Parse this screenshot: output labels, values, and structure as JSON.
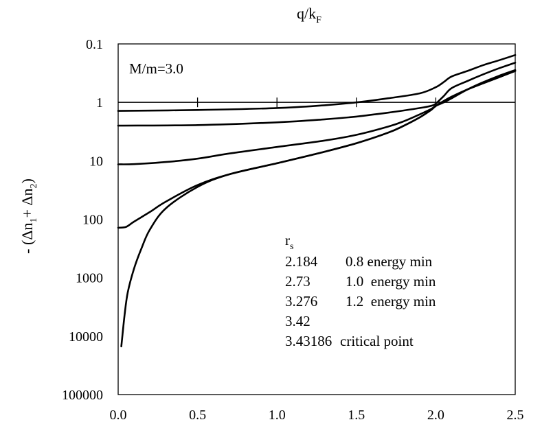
{
  "chart_data": {
    "type": "line",
    "title": "",
    "annotation": "M/m=3.0",
    "xlabel": "q/k",
    "xlabel_sub": "F",
    "ylabel": "- (Δn",
    "ylabel_sub1": "1",
    "ylabel_mid": "+ Δn",
    "ylabel_sub2": "2",
    "ylabel_end": ")",
    "xlim": [
      0.0,
      2.5
    ],
    "ylim_log10": [
      -1,
      5
    ],
    "y_inverted": true,
    "y_scale": "log",
    "x_ticks": [
      "0.0",
      "0.5",
      "1.0",
      "1.5",
      "2.0",
      "2.5"
    ],
    "y_ticks": [
      "0.1",
      "1",
      "10",
      "100",
      "1000",
      "10000",
      "100000"
    ],
    "reference_line_y": 1,
    "reference_ticks_x": [
      0.5,
      1.0,
      1.5,
      2.0
    ],
    "legend_header_r": "r",
    "legend_header_sub": "s",
    "legend": [
      {
        "rs": "2.184",
        "desc": "0.8 energy min"
      },
      {
        "rs": "2.73",
        "desc": "1.0  energy min"
      },
      {
        "rs": "3.276",
        "desc": "1.2  energy min"
      },
      {
        "rs": "3.42",
        "desc": ""
      },
      {
        "rs": "3.43186",
        "desc": "critical point"
      }
    ],
    "series": [
      {
        "name": "2.184",
        "x": [
          0.0,
          0.5,
          1.0,
          1.3,
          1.5,
          1.7,
          1.9,
          2.0,
          2.05,
          2.1,
          2.2,
          2.3,
          2.4,
          2.5
        ],
        "y": [
          1.4,
          1.35,
          1.25,
          1.12,
          1.0,
          0.85,
          0.7,
          0.55,
          0.45,
          0.36,
          0.29,
          0.23,
          0.19,
          0.155
        ]
      },
      {
        "name": "2.73",
        "x": [
          0.0,
          0.5,
          1.0,
          1.3,
          1.5,
          1.7,
          1.9,
          1.97,
          2.0,
          2.05,
          2.1,
          2.2,
          2.3,
          2.4,
          2.5
        ],
        "y": [
          2.5,
          2.45,
          2.2,
          1.95,
          1.75,
          1.5,
          1.25,
          1.15,
          1.05,
          0.78,
          0.57,
          0.43,
          0.33,
          0.26,
          0.21
        ]
      },
      {
        "name": "3.276",
        "x": [
          0.0,
          0.1,
          0.3,
          0.5,
          0.7,
          1.0,
          1.3,
          1.5,
          1.7,
          1.8,
          1.9,
          1.97,
          2.0,
          2.05,
          2.1,
          2.2,
          2.3,
          2.4,
          2.5
        ],
        "y": [
          11.5,
          11.4,
          10.5,
          9.2,
          7.5,
          5.8,
          4.5,
          3.6,
          2.6,
          2.1,
          1.6,
          1.3,
          1.15,
          1.0,
          0.85,
          0.6,
          0.45,
          0.35,
          0.28
        ]
      },
      {
        "name": "3.42",
        "x": [
          0.0,
          0.05,
          0.1,
          0.2,
          0.3,
          0.5,
          0.7,
          1.0,
          1.3,
          1.5,
          1.7,
          1.8,
          1.9,
          1.97,
          2.0,
          2.05,
          2.1,
          2.2,
          2.3,
          2.4,
          2.5
        ],
        "y": [
          140,
          135,
          110,
          75,
          50,
          26,
          17,
          11,
          7,
          5,
          3.3,
          2.5,
          1.8,
          1.35,
          1.15,
          0.95,
          0.8,
          0.6,
          0.47,
          0.37,
          0.29
        ]
      },
      {
        "name": "3.43186",
        "x": [
          0.02,
          0.04,
          0.06,
          0.1,
          0.15,
          0.2,
          0.3,
          0.5,
          0.7,
          1.0,
          1.3,
          1.5,
          1.7,
          1.8,
          1.9,
          1.97,
          2.0,
          2.05,
          2.1,
          2.2,
          2.3,
          2.4,
          2.5
        ],
        "y": [
          15000,
          4500,
          1800,
          700,
          300,
          150,
          65,
          28,
          17,
          11,
          7,
          5,
          3.3,
          2.5,
          1.8,
          1.35,
          1.15,
          0.95,
          0.8,
          0.6,
          0.47,
          0.37,
          0.29
        ]
      }
    ]
  }
}
